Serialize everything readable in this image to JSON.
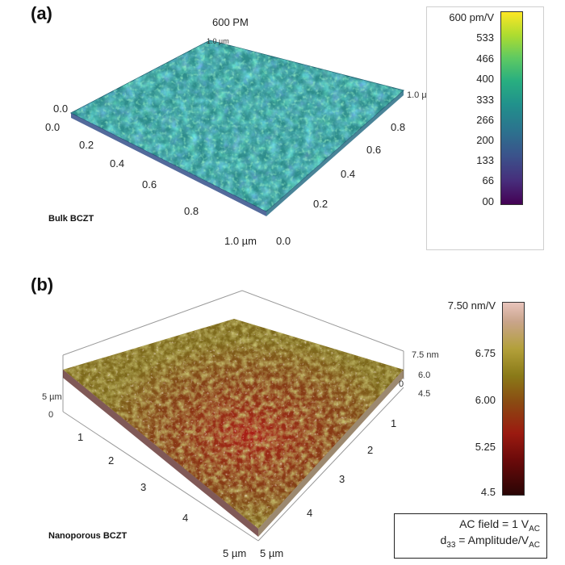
{
  "panel_a": {
    "label": "(a)",
    "top_title": "600 PM",
    "sample": "Bulk BCZT",
    "x_ticks": [
      "0.0",
      "0.2",
      "0.4",
      "0.6",
      "0.8",
      "1.0 µm"
    ],
    "y_ticks": [
      "0.0",
      "0.2",
      "0.4",
      "0.6",
      "0.8",
      "1.0 µm"
    ],
    "z_tick_small": "0.0",
    "colorbar": {
      "labels": [
        "600 pm/V",
        "533",
        "466",
        "400",
        "333",
        "266",
        "200",
        "133",
        "66",
        "00"
      ],
      "colormap": "viridis"
    }
  },
  "panel_b": {
    "label": "(b)",
    "sample": "Nanoporous BCZT",
    "x_ticks": [
      "5 µm",
      "0",
      "1",
      "2",
      "3",
      "4",
      "5 µm"
    ],
    "y_ticks": [
      "0",
      "1",
      "2",
      "3",
      "4",
      "5 µm"
    ],
    "z_ticks": [
      "7.5 nm",
      "6.0",
      "4.5"
    ],
    "colorbar": {
      "labels": [
        "7.50 nm/V",
        "6.75",
        "6.00",
        "5.25",
        "4.5"
      ],
      "colormap": "dark-red to olive to pink"
    },
    "formula": {
      "line1_main": "AC field = 1 V",
      "line1_sub": "AC",
      "line2_d": "d",
      "line2_d_sub": "33",
      "line2_main": " = Amplitude/V",
      "line2_sub": "AC"
    }
  },
  "colors": {
    "surface_a_base": "#2b8a8a",
    "surface_b_base": "#7a6a1a",
    "surface_b_red": "#a01818"
  }
}
